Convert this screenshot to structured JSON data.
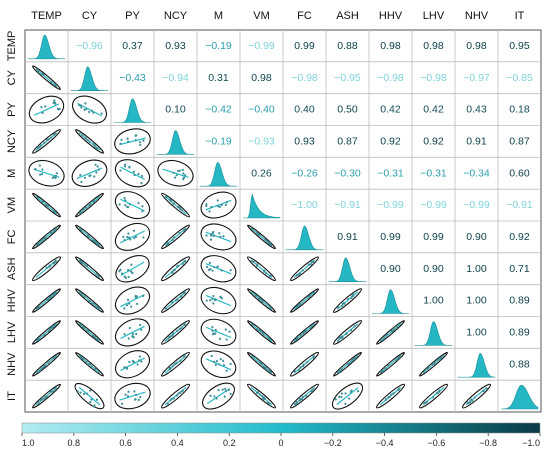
{
  "chart_data": {
    "type": "correlation_matrix",
    "variables": [
      "TEMP",
      "CY",
      "PY",
      "NCY",
      "M",
      "VM",
      "FC",
      "ASH",
      "HHV",
      "LHV",
      "NHV",
      "IT"
    ],
    "upper_coefficients": [
      [
        null,
        -0.96,
        0.37,
        0.93,
        -0.19,
        -0.99,
        0.99,
        0.88,
        0.98,
        0.98,
        0.98,
        0.95
      ],
      [
        null,
        null,
        -0.43,
        -0.94,
        0.31,
        0.98,
        -0.98,
        -0.95,
        -0.98,
        -0.98,
        -0.97,
        -0.85
      ],
      [
        null,
        null,
        null,
        0.1,
        -0.42,
        -0.4,
        0.4,
        0.5,
        0.42,
        0.42,
        0.43,
        0.18
      ],
      [
        null,
        null,
        null,
        null,
        -0.19,
        -0.93,
        0.93,
        0.87,
        0.92,
        0.92,
        0.91,
        0.87
      ],
      [
        null,
        null,
        null,
        null,
        null,
        0.26,
        -0.26,
        -0.3,
        -0.31,
        -0.31,
        -0.34,
        0.6
      ],
      [
        null,
        null,
        null,
        null,
        null,
        null,
        -1.0,
        -0.91,
        -0.99,
        -0.99,
        -0.99,
        -0.91
      ],
      [
        null,
        null,
        null,
        null,
        null,
        null,
        null,
        0.91,
        0.99,
        0.99,
        0.9,
        0.92
      ],
      [
        null,
        null,
        null,
        null,
        null,
        null,
        null,
        null,
        0.9,
        0.9,
        1.0,
        0.71
      ],
      [
        null,
        null,
        null,
        null,
        null,
        null,
        null,
        null,
        null,
        1.0,
        1.0,
        0.89
      ],
      [
        null,
        null,
        null,
        null,
        null,
        null,
        null,
        null,
        null,
        null,
        1.0,
        0.89
      ],
      [
        null,
        null,
        null,
        null,
        null,
        null,
        null,
        null,
        null,
        null,
        null,
        0.88
      ],
      [
        null,
        null,
        null,
        null,
        null,
        null,
        null,
        null,
        null,
        null,
        null,
        null
      ]
    ],
    "diagonal": "density",
    "lower": "scatter with ellipse",
    "colorbar": {
      "ticks": [
        "1.0",
        "0.8",
        "0.6",
        "0.4",
        "0.2",
        "0",
        "−0.2",
        "−0.4",
        "−0.6",
        "−0.8",
        "−1.0"
      ],
      "min": -1.0,
      "max": 1.0,
      "colors": [
        "#b2ecf2",
        "#21bccb",
        "#0a3a44"
      ]
    }
  }
}
